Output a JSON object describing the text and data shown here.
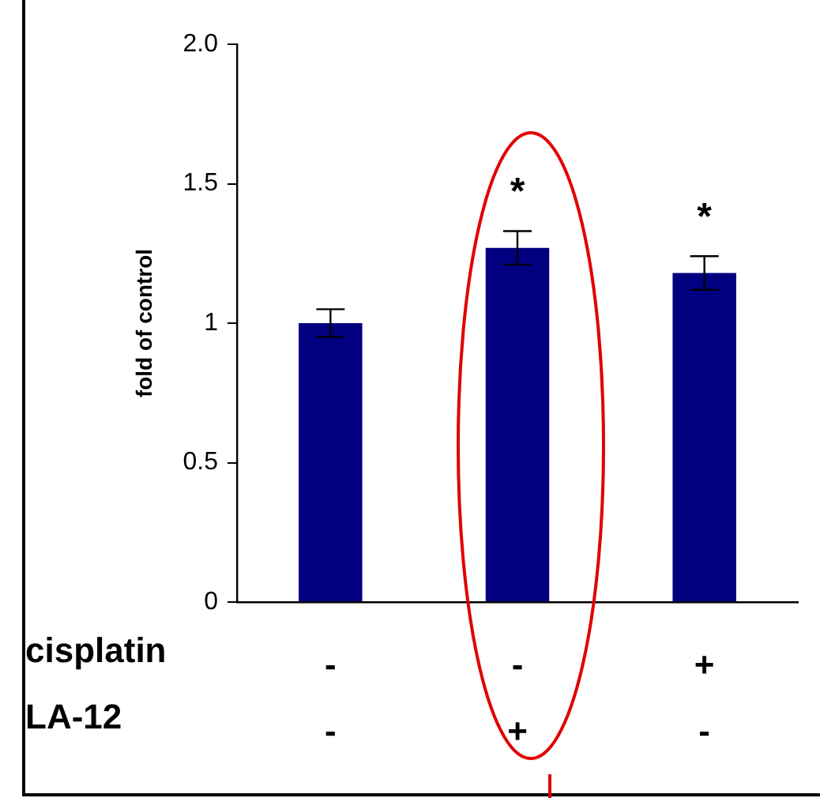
{
  "chart_data": {
    "type": "bar",
    "ylabel": "fold of control",
    "categories": [
      "-\n-",
      "-\n+",
      "+\n-"
    ],
    "values": [
      1.0,
      1.27,
      1.18
    ],
    "errors": [
      0.05,
      0.06,
      0.06
    ],
    "color": "#000080",
    "ylim": [
      0,
      2
    ],
    "yticks": [
      0,
      0.5,
      1,
      1.5,
      {
        "value": 2,
        "label": "2.0"
      }
    ],
    "grid": false,
    "legend": false,
    "value_labels": [
      null,
      "*",
      "*"
    ],
    "annotations": [
      "cisplatin",
      "LA-12"
    ]
  }
}
